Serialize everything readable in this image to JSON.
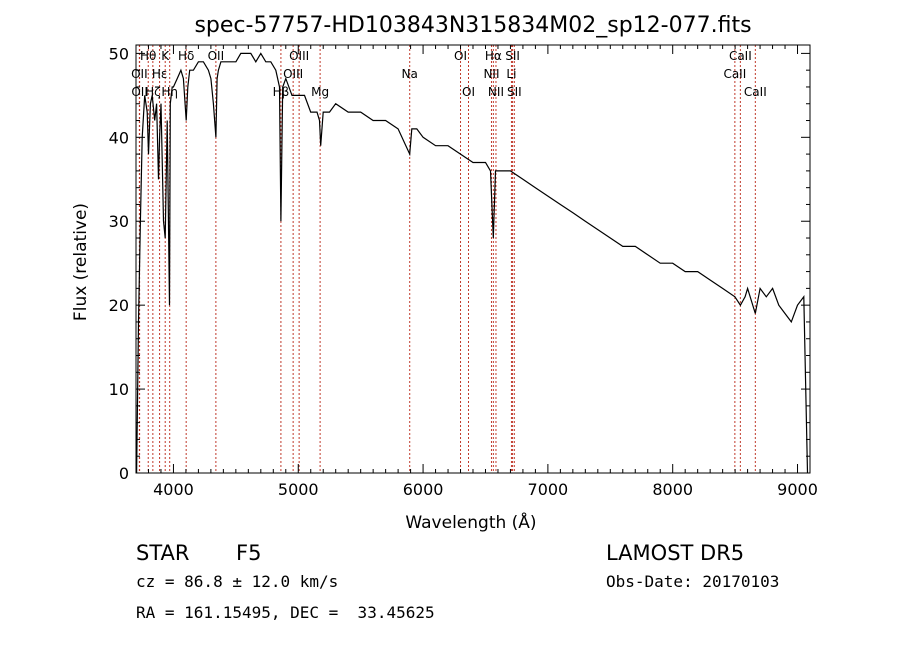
{
  "chart_data": {
    "type": "line",
    "title": "spec-57757-HD103843N315834M02_sp12-077.fits",
    "xlabel": "Wavelength (Å)",
    "ylabel": "Flux (relative)",
    "xlim": [
      3700,
      9100
    ],
    "ylim": [
      0,
      51
    ],
    "x_ticks": [
      "4000",
      "5000",
      "6000",
      "7000",
      "8000",
      "9000"
    ],
    "y_ticks": [
      "0",
      "10",
      "20",
      "30",
      "40",
      "50"
    ],
    "grid": false,
    "series": [
      {
        "x": [
          3705,
          3720,
          3735,
          3750,
          3770,
          3790,
          3800,
          3815,
          3830,
          3850,
          3865,
          3880,
          3889,
          3900,
          3920,
          3934,
          3950,
          3968,
          3975,
          3990,
          4000,
          4030,
          4060,
          4080,
          4102,
          4115,
          4130,
          4160,
          4200,
          4240,
          4280,
          4300,
          4320,
          4340,
          4350,
          4360,
          4380,
          4420,
          4460,
          4500,
          4540,
          4580,
          4620,
          4660,
          4700,
          4740,
          4780,
          4820,
          4850,
          4861,
          4875,
          4900,
          4950,
          5000,
          5050,
          5100,
          5150,
          5170,
          5180,
          5200,
          5250,
          5300,
          5400,
          5500,
          5600,
          5700,
          5800,
          5893,
          5910,
          5950,
          6000,
          6100,
          6200,
          6300,
          6400,
          6500,
          6540,
          6563,
          6580,
          6620,
          6700,
          6800,
          6900,
          7000,
          7100,
          7200,
          7300,
          7400,
          7500,
          7600,
          7700,
          7800,
          7900,
          8000,
          8100,
          8200,
          8300,
          8400,
          8498,
          8542,
          8580,
          8600,
          8662,
          8700,
          8750,
          8800,
          8850,
          8900,
          8950,
          9000,
          9050,
          9080
        ],
        "y": [
          0,
          18,
          30,
          40,
          45,
          43,
          38,
          44,
          45,
          42,
          44,
          35,
          40,
          44,
          30,
          28,
          42,
          20,
          44,
          46,
          46,
          47,
          48,
          47,
          42,
          46,
          48,
          48,
          49,
          49,
          48,
          47,
          44,
          40,
          47,
          48,
          49,
          49,
          49,
          49,
          50,
          50,
          50,
          49,
          50,
          49,
          49,
          48,
          46,
          30,
          46,
          47,
          45,
          45,
          45,
          43,
          43,
          42,
          39,
          43,
          43,
          44,
          43,
          43,
          42,
          42,
          41,
          38,
          41,
          41,
          40,
          39,
          39,
          38,
          37,
          37,
          36,
          28,
          36,
          36,
          36,
          35,
          34,
          33,
          32,
          31,
          30,
          29,
          28,
          27,
          27,
          26,
          25,
          25,
          24,
          24,
          23,
          22,
          21,
          20,
          21,
          22,
          19,
          22,
          21,
          22,
          20,
          19,
          18,
          20,
          21,
          0
        ]
      }
    ],
    "line_markers": [
      {
        "label": "Hθ",
        "x": 3798,
        "row": 1
      },
      {
        "label": "OII",
        "x": 3727,
        "row": 2
      },
      {
        "label": "OII",
        "x": 3729,
        "row": 3
      },
      {
        "label": "Hε",
        "x": 3889,
        "row": 2
      },
      {
        "label": "Hζ",
        "x": 3835,
        "row": 3
      },
      {
        "label": "K",
        "x": 3934,
        "row": 1
      },
      {
        "label": "Hδ",
        "x": 4102,
        "row": 1
      },
      {
        "label": "Hη",
        "x": 3970,
        "row": 3
      },
      {
        "label": "OII",
        "x": 4340,
        "row": 1
      },
      {
        "label": "OIII",
        "x": 5007,
        "row": 1
      },
      {
        "label": "OIII",
        "x": 4959,
        "row": 2
      },
      {
        "label": "Hβ",
        "x": 4861,
        "row": 3
      },
      {
        "label": "Mg",
        "x": 5175,
        "row": 3
      },
      {
        "label": "Na",
        "x": 5893,
        "row": 2
      },
      {
        "label": "OI",
        "x": 6300,
        "row": 1
      },
      {
        "label": "OI",
        "x": 6364,
        "row": 3
      },
      {
        "label": "Hα",
        "x": 6563,
        "row": 1
      },
      {
        "label": "NII",
        "x": 6548,
        "row": 2
      },
      {
        "label": "NII",
        "x": 6584,
        "row": 3
      },
      {
        "label": "SII",
        "x": 6717,
        "row": 1
      },
      {
        "label": "Li",
        "x": 6708,
        "row": 2
      },
      {
        "label": "SII",
        "x": 6731,
        "row": 3
      },
      {
        "label": "CaII",
        "x": 8542,
        "row": 1
      },
      {
        "label": "CaII",
        "x": 8498,
        "row": 2
      },
      {
        "label": "CaII",
        "x": 8662,
        "row": 3
      }
    ],
    "marker_color": "#c0392b"
  },
  "info": {
    "object_class": "STAR",
    "subclass": "F5",
    "survey": "LAMOST DR5",
    "cz": "cz = 86.8 ± 12.0 km/s",
    "obs_date": "Obs-Date: 20170103",
    "coords": "RA = 161.15495, DEC =  33.45625"
  }
}
